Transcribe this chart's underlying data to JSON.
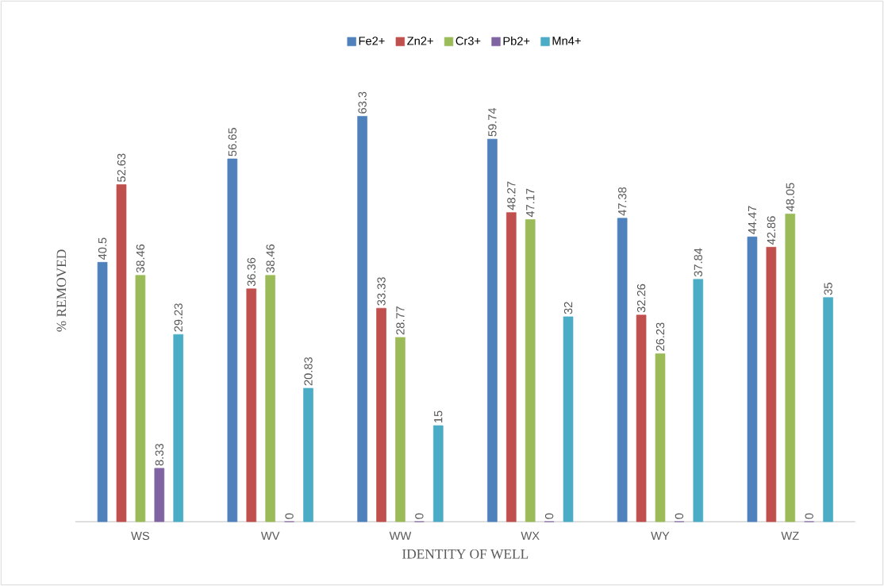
{
  "chart_data": {
    "type": "bar",
    "xlabel": "IDENTITY OF WELL",
    "ylabel": "% REMOVED",
    "categories": [
      "WS",
      "WV",
      "WW",
      "WX",
      "WY",
      "WZ"
    ],
    "series": [
      {
        "name": "Fe2+",
        "color": "#4f81bd",
        "values": [
          40.5,
          56.65,
          63.3,
          59.74,
          47.38,
          44.47
        ]
      },
      {
        "name": "Zn2+",
        "color": "#c0504d",
        "values": [
          52.63,
          36.36,
          33.33,
          48.27,
          32.26,
          42.86
        ]
      },
      {
        "name": "Cr3+",
        "color": "#9bbb59",
        "values": [
          38.46,
          38.46,
          28.77,
          47.17,
          26.23,
          48.05
        ]
      },
      {
        "name": "Pb2+",
        "color": "#8064a2",
        "values": [
          8.33,
          0,
          0,
          0,
          0,
          0
        ]
      },
      {
        "name": "Mn4+",
        "color": "#4bacc6",
        "values": [
          29.23,
          20.83,
          15,
          32,
          37.84,
          35
        ]
      }
    ],
    "data_labels": true,
    "legend": "top"
  }
}
